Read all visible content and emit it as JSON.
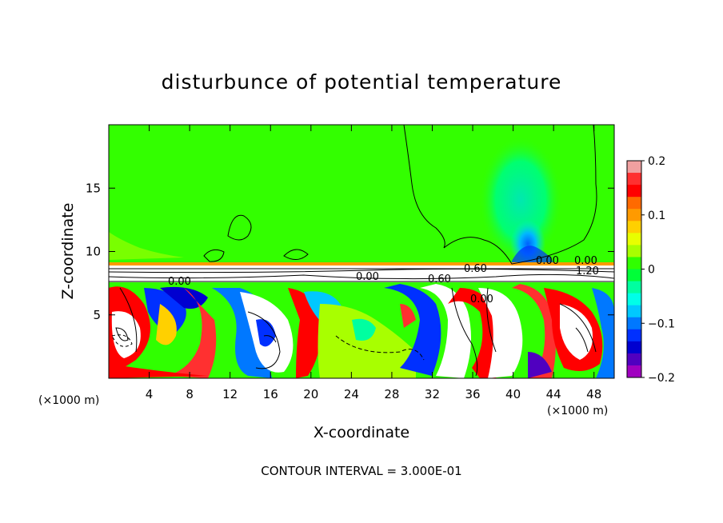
{
  "chart_data": {
    "type": "heatmap",
    "title": "disturbunce of potential temperature",
    "xlabel": "X-coordinate",
    "ylabel": "Z-coordinate",
    "x_unit": "(×1000 m)",
    "z_unit": "(×1000 m)",
    "xlim": [
      0,
      50
    ],
    "ylim": [
      0,
      20
    ],
    "x_ticks": [
      4,
      8,
      12,
      16,
      20,
      24,
      28,
      32,
      36,
      40,
      44,
      48
    ],
    "x_tick_labels": [
      "4",
      "8",
      "12",
      "16",
      "20",
      "24",
      "28",
      "32",
      "36",
      "40",
      "44",
      "48"
    ],
    "y_ticks": [
      5,
      10,
      15
    ],
    "y_tick_labels": [
      "5",
      "10",
      "15"
    ],
    "contour_labels": [
      "0.00",
      "0.60",
      "0.60",
      "0.00",
      "0.00",
      "0.00",
      "1.20",
      "0.00"
    ],
    "colorbar": {
      "min": -0.2,
      "max": 0.2,
      "tick_values": [
        0.2,
        0.1,
        0,
        -0.1,
        -0.2
      ],
      "tick_labels": [
        "0.2",
        "0.1",
        "0",
        "−0.1",
        "−0.2"
      ],
      "colors": [
        "#f0a0a0",
        "#ff3030",
        "#ff0000",
        "#ff6a00",
        "#ff9a00",
        "#ffd000",
        "#e8ff00",
        "#a8ff00",
        "#30ff00",
        "#00ff38",
        "#00ffa0",
        "#00ffe8",
        "#00c8ff",
        "#0078ff",
        "#0030ff",
        "#0000d0",
        "#5000c0",
        "#a000c0"
      ]
    },
    "background_color": "#33ff00",
    "annotation": "CONTOUR INTERVAL = 3.000E-01"
  }
}
